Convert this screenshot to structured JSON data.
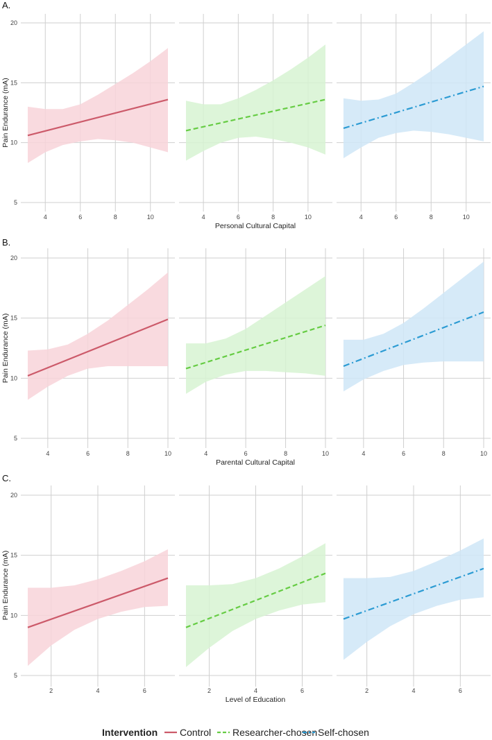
{
  "chart_data": {
    "type": "line",
    "ylabel": "Pain Endurance (mA)",
    "ylim": [
      5,
      20
    ],
    "yticks": [
      5,
      10,
      15,
      20
    ],
    "legend": {
      "title": "Intervention",
      "placement": "bottom",
      "entries": [
        {
          "name": "Control",
          "color": "#cc5a6a",
          "dash": "solid"
        },
        {
          "name": "Researcher-chosen",
          "color": "#66cc44",
          "dash": "dashed"
        },
        {
          "name": "Self-chosen",
          "color": "#2b9bd3",
          "dash": "dashdot"
        }
      ]
    },
    "band_colors": [
      "#f8d3d9",
      "#d7f3d2",
      "#cfe6f7"
    ],
    "panels": [
      {
        "label": "A.",
        "xlabel": "Personal Cultural Capital",
        "xlim": [
          3,
          11
        ],
        "xticks": [
          4,
          6,
          8,
          10
        ],
        "series": [
          {
            "name": "Control",
            "x": [
              3,
              11
            ],
            "y": [
              10.6,
              13.6
            ],
            "band_x": [
              3,
              4,
              5,
              6,
              7,
              8,
              9,
              10,
              11
            ],
            "band_upper": [
              13.0,
              12.8,
              12.8,
              13.2,
              14.0,
              14.9,
              15.8,
              16.8,
              17.9
            ],
            "band_lower": [
              8.3,
              9.2,
              9.8,
              10.1,
              10.3,
              10.2,
              10.0,
              9.6,
              9.2
            ]
          },
          {
            "name": "Researcher-chosen",
            "x": [
              3,
              11
            ],
            "y": [
              11.0,
              13.6
            ],
            "band_x": [
              3,
              4,
              5,
              6,
              7,
              8,
              9,
              10,
              11
            ],
            "band_upper": [
              13.5,
              13.2,
              13.2,
              13.7,
              14.4,
              15.2,
              16.1,
              17.1,
              18.2
            ],
            "band_lower": [
              8.5,
              9.3,
              10.0,
              10.4,
              10.5,
              10.3,
              10.0,
              9.6,
              9.0
            ]
          },
          {
            "name": "Self-chosen",
            "x": [
              3,
              11
            ],
            "y": [
              11.2,
              14.7
            ],
            "band_x": [
              3,
              4,
              5,
              6,
              7,
              8,
              9,
              10,
              11
            ],
            "band_upper": [
              13.7,
              13.5,
              13.6,
              14.1,
              15.0,
              16.0,
              17.1,
              18.2,
              19.3
            ],
            "band_lower": [
              8.7,
              9.6,
              10.4,
              10.8,
              11.0,
              10.9,
              10.7,
              10.4,
              10.1
            ]
          }
        ]
      },
      {
        "label": "B.",
        "xlabel": "Parental Cultural Capital",
        "xlim": [
          3,
          10
        ],
        "xticks": [
          4,
          6,
          8,
          10
        ],
        "series": [
          {
            "name": "Control",
            "x": [
              3,
              10
            ],
            "y": [
              10.2,
              14.9
            ],
            "band_x": [
              3,
              4,
              5,
              6,
              7,
              8,
              9,
              10
            ],
            "band_upper": [
              12.3,
              12.4,
              12.8,
              13.7,
              14.8,
              16.1,
              17.4,
              18.8
            ],
            "band_lower": [
              8.2,
              9.3,
              10.2,
              10.8,
              11.0,
              11.0,
              11.0,
              11.0
            ],
            "dummy": null
          },
          {
            "name": "Researcher-chosen",
            "x": [
              3,
              10
            ],
            "y": [
              10.8,
              14.4
            ],
            "band_x": [
              3,
              4,
              5,
              6,
              7,
              8,
              9,
              10
            ],
            "band_upper": [
              12.9,
              12.9,
              13.3,
              14.1,
              15.2,
              16.3,
              17.4,
              18.5
            ],
            "band_lower": [
              8.7,
              9.7,
              10.3,
              10.6,
              10.6,
              10.5,
              10.4,
              10.2
            ]
          },
          {
            "name": "Self-chosen",
            "x": [
              3,
              10
            ],
            "y": [
              11.0,
              15.5
            ],
            "band_x": [
              3,
              4,
              5,
              6,
              7,
              8,
              9,
              10
            ],
            "band_upper": [
              13.2,
              13.2,
              13.7,
              14.6,
              15.8,
              17.1,
              18.4,
              19.7
            ],
            "band_lower": [
              8.9,
              9.9,
              10.6,
              11.1,
              11.3,
              11.4,
              11.4,
              11.4
            ]
          }
        ]
      },
      {
        "label": "C.",
        "xlabel": "Level of Education",
        "xlim": [
          1,
          7
        ],
        "xticks": [
          2,
          4,
          6
        ],
        "series": [
          {
            "name": "Control",
            "x": [
              1,
              7
            ],
            "y": [
              9.0,
              13.1
            ],
            "band_x": [
              1,
              2,
              3,
              4,
              5,
              6,
              7
            ],
            "band_upper": [
              12.3,
              12.3,
              12.5,
              13.0,
              13.7,
              14.5,
              15.5
            ],
            "band_lower": [
              5.8,
              7.5,
              8.8,
              9.7,
              10.3,
              10.7,
              10.8
            ]
          },
          {
            "name": "Researcher-chosen",
            "x": [
              1,
              7
            ],
            "y": [
              9.0,
              13.5
            ],
            "band_x": [
              1,
              2,
              3,
              4,
              5,
              6,
              7
            ],
            "band_upper": [
              12.5,
              12.5,
              12.6,
              13.1,
              13.9,
              14.9,
              16.0
            ],
            "band_lower": [
              5.7,
              7.3,
              8.7,
              9.7,
              10.4,
              10.9,
              11.1
            ]
          },
          {
            "name": "Self-chosen",
            "x": [
              1,
              7
            ],
            "y": [
              9.7,
              13.9
            ],
            "band_x": [
              1,
              2,
              3,
              4,
              5,
              6,
              7
            ],
            "band_upper": [
              13.1,
              13.1,
              13.2,
              13.7,
              14.5,
              15.4,
              16.4
            ],
            "band_lower": [
              6.3,
              7.8,
              9.1,
              10.1,
              10.8,
              11.3,
              11.5
            ]
          }
        ]
      }
    ]
  }
}
